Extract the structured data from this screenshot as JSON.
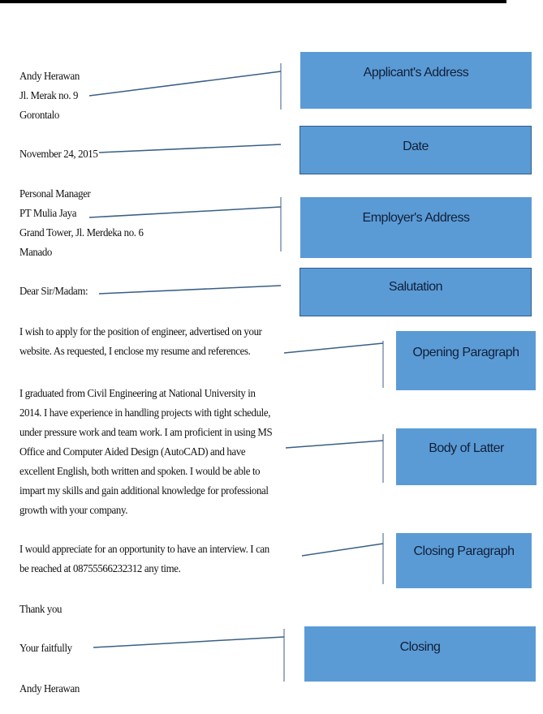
{
  "letter": {
    "applicant_address": [
      "Andy Herawan",
      "Jl. Merak no. 9",
      "Gorontalo"
    ],
    "date": "November 24, 2015",
    "employer_address": [
      "Personal Manager",
      "PT Mulia Jaya",
      "Grand Tower, Jl. Merdeka no. 6",
      "Manado"
    ],
    "salutation": "Dear Sir/Madam:",
    "opening_paragraph": [
      "I wish to apply for the position of engineer, advertised on your",
      "website. As requested, I enclose my resume and references."
    ],
    "body": [
      "I graduated from Civil Engineering at National University in",
      "2014. I have experience in handling projects with tight schedule,",
      "under pressure work and team work. I am proficient in using MS",
      "Office and Computer Aided Design (AutoCAD) and have",
      "excellent English, both written and spoken. I would be able to",
      "impart my skills and gain additional knowledge for professional",
      "growth with your company."
    ],
    "closing_paragraph": [
      "I would appreciate for an opportunity to have an interview. I can",
      "be reached at 08755566232312 any time."
    ],
    "thanks": "Thank you",
    "closing": "Your faitfully",
    "signature": "Andy Herawan"
  },
  "labels": {
    "applicant_address": "Applicant's Address",
    "date": "Date",
    "employer_address": "Employer's Address",
    "salutation": "Salutation",
    "opening_paragraph": "Opening Paragraph",
    "body": "Body of Latter",
    "closing_paragraph": "Closing Paragraph",
    "closing": "Closing"
  },
  "colors": {
    "label_box": "#5b9bd5",
    "connector": "#3a5f85"
  }
}
